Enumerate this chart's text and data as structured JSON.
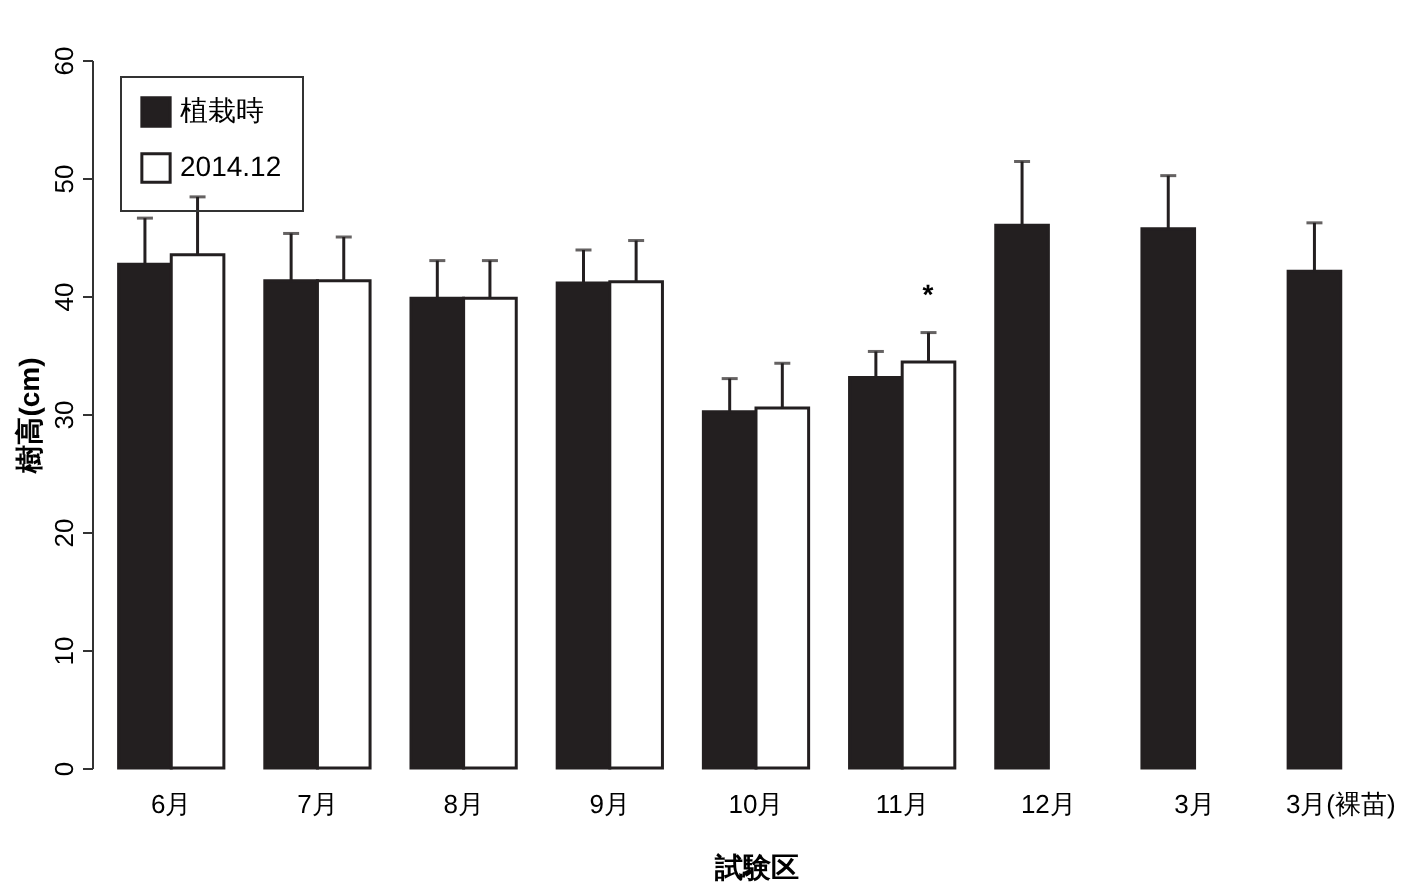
{
  "chart_data": {
    "type": "bar",
    "xlabel": "試験区",
    "ylabel": "樹高(cm)",
    "categories": [
      "6月",
      "7月",
      "8月",
      "9月",
      "10月",
      "11月",
      "12月",
      "3月",
      "3月(裸苗)"
    ],
    "series": [
      {
        "name": "植栽時",
        "color": "#231f20",
        "values": [
          42.7,
          41.3,
          39.8,
          41.1,
          30.2,
          33.1,
          46.0,
          45.7,
          42.1
        ],
        "errors": [
          3.9,
          4.0,
          3.2,
          2.8,
          2.8,
          2.2,
          5.4,
          4.5,
          4.1
        ]
      },
      {
        "name": "2014.12",
        "color": "#ffffff",
        "values": [
          43.5,
          41.3,
          39.8,
          41.2,
          30.5,
          34.4,
          null,
          null,
          null
        ],
        "errors": [
          4.9,
          3.7,
          3.2,
          3.5,
          3.8,
          2.5,
          null,
          null,
          null
        ]
      }
    ],
    "ylim": [
      0,
      60
    ],
    "yticks": [
      0,
      10,
      20,
      30,
      40,
      50,
      60
    ],
    "grid": false,
    "legend": "top left",
    "annotations": [
      "*"
    ]
  }
}
